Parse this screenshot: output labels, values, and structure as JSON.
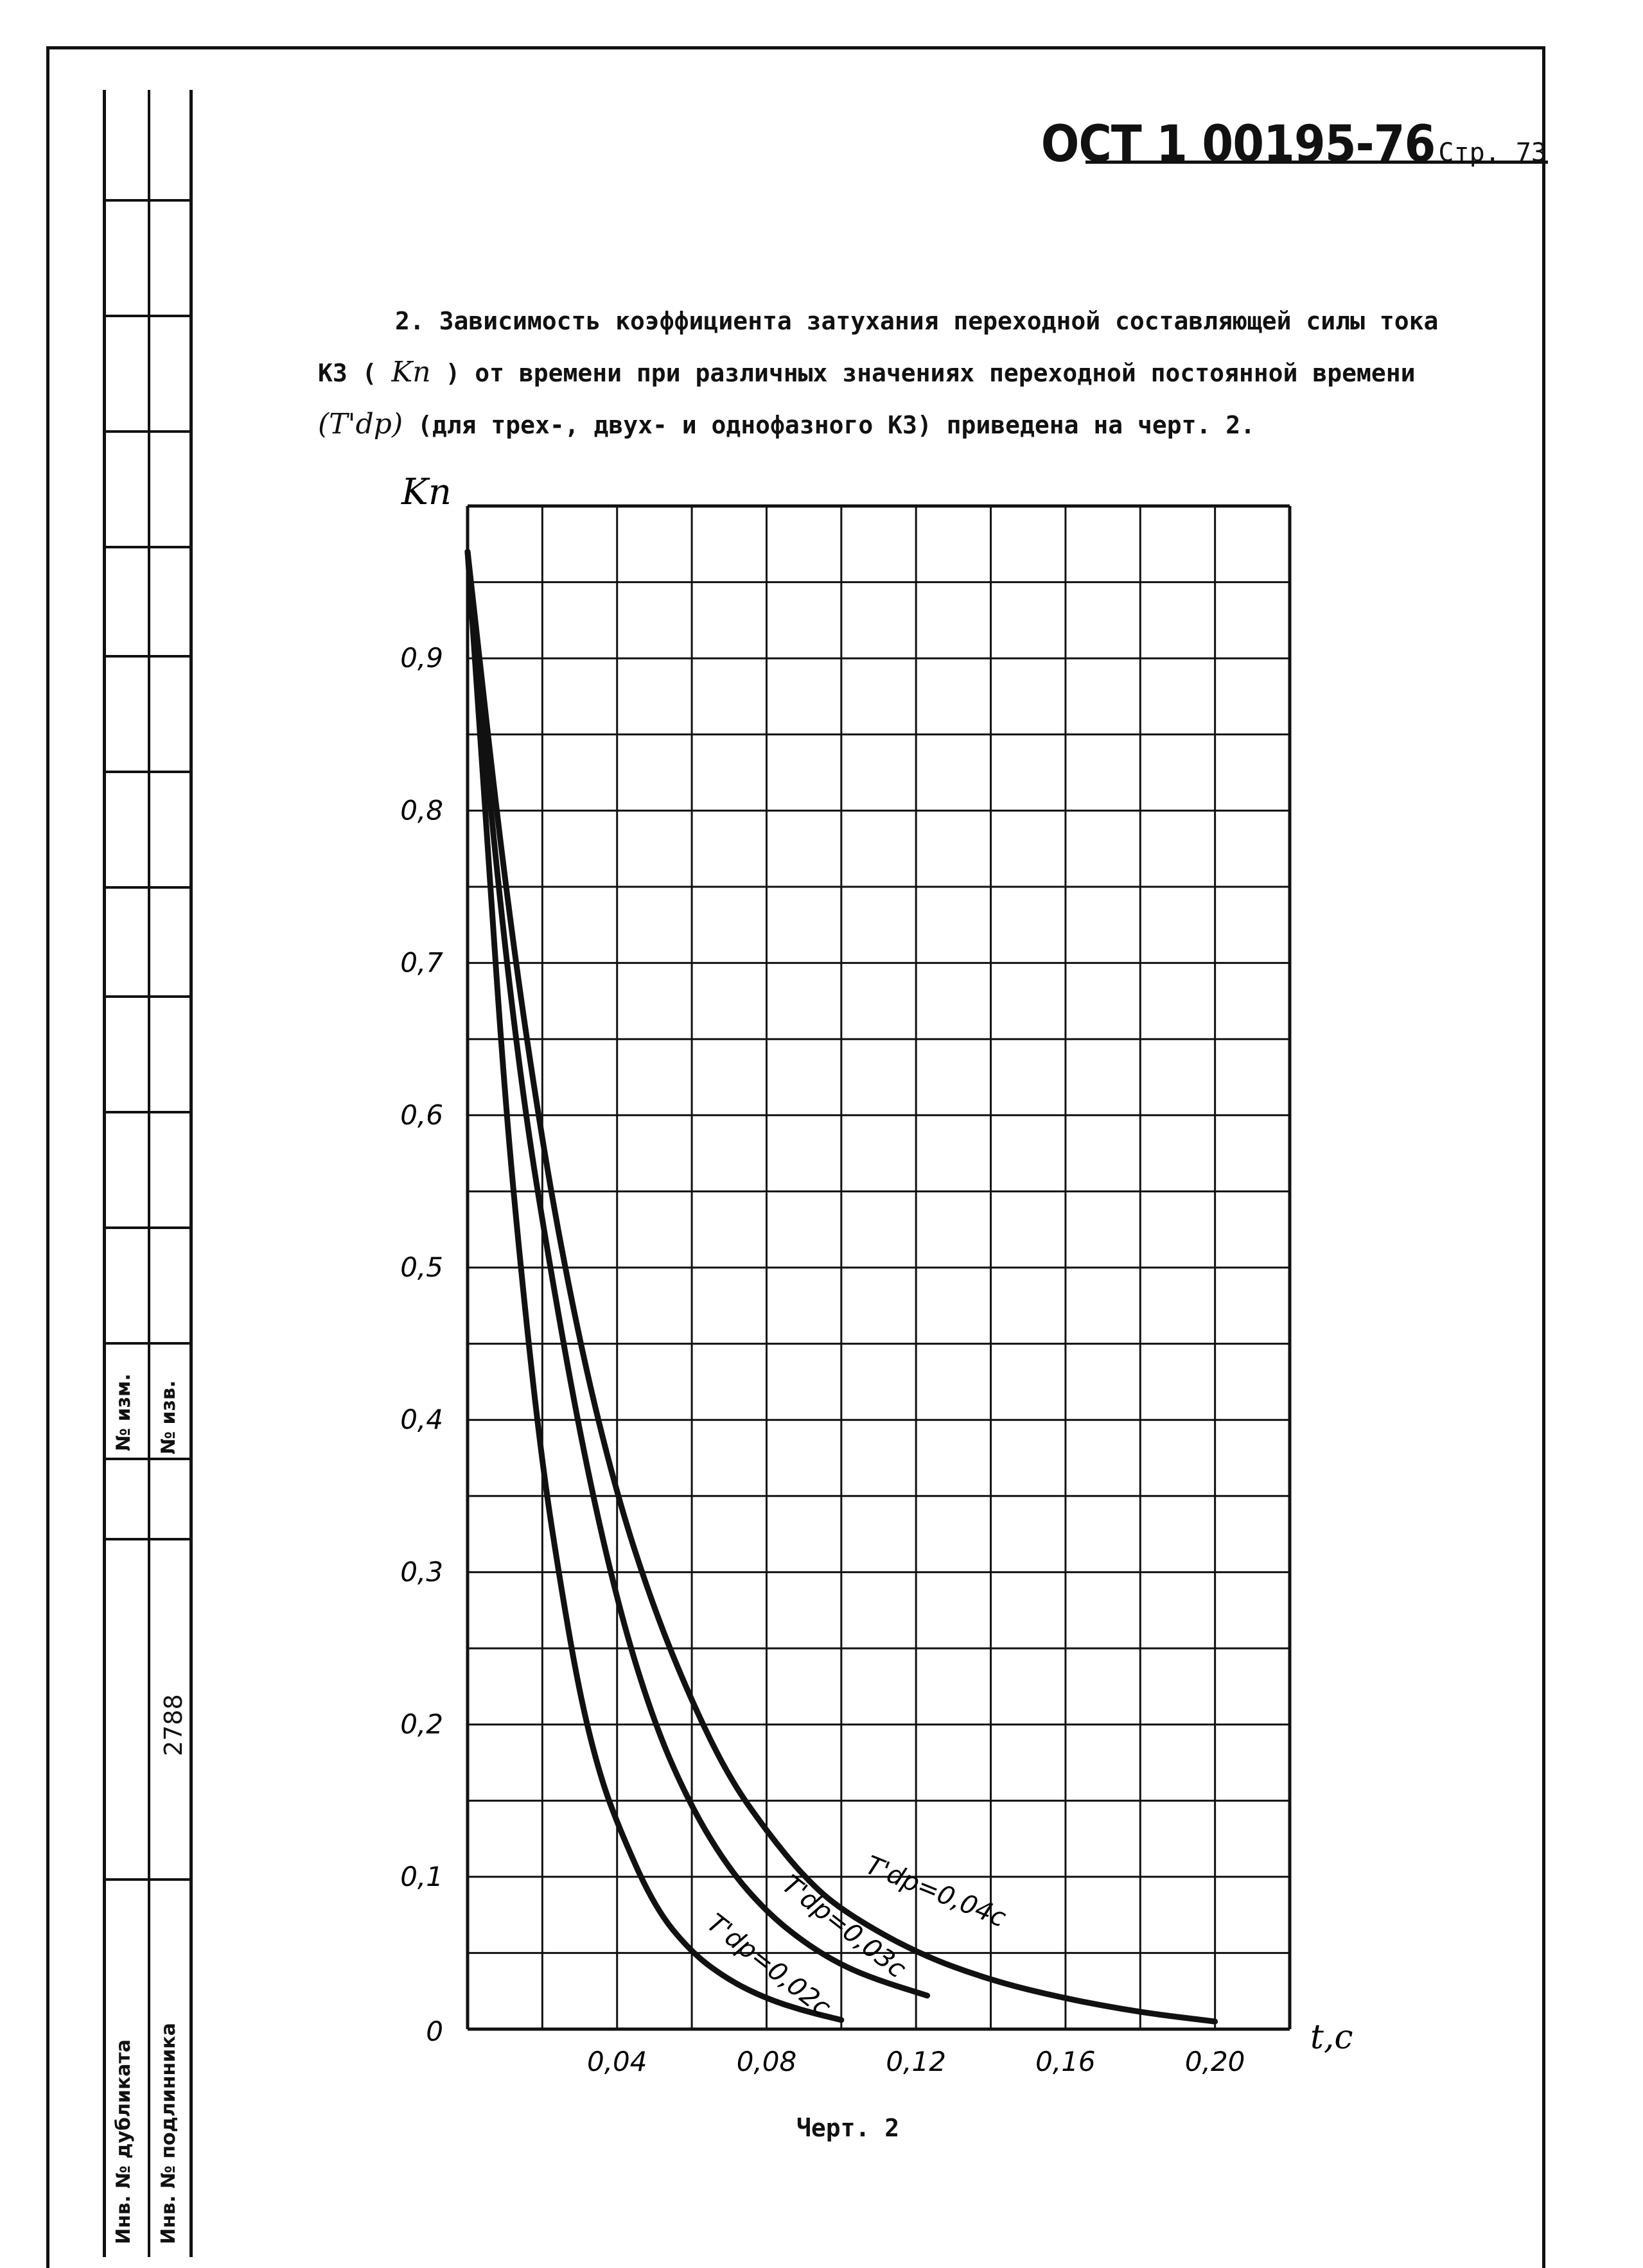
{
  "header": {
    "standard": "ОСТ 1 00195-76",
    "page": "Стр. 73"
  },
  "paragraph": {
    "line1": "2. Зависимость коэффициента затухания переходной составляющей силы тока",
    "line2_a": "КЗ (",
    "line2_sym": "Kп",
    "line2_b": ") от времени при различных значениях переходной постоянной времени",
    "line3_sym": "(T'dp)",
    "line3_b": " (для трех-, двух- и однофазного КЗ) приведена на черт. 2."
  },
  "side_table": {
    "izm": "№ изм.",
    "izv": "№ изв.",
    "dubl": "Инв. № дубликата",
    "podl": "Инв. № подлинника",
    "number": "2788"
  },
  "caption": "Черт. 2",
  "chart_data": {
    "type": "line",
    "ylabel": "Kп",
    "xlabel": "t,c",
    "xlim": [
      0,
      0.22
    ],
    "ylim": [
      0,
      1.0
    ],
    "grid": true,
    "y_ticks": [
      "0",
      "0,1",
      "0,2",
      "0,3",
      "0,4",
      "0,5",
      "0,6",
      "0,7",
      "0,8",
      "0,9"
    ],
    "x_ticks": [
      "0,04",
      "0,08",
      "0,12",
      "0,16",
      "0,20"
    ],
    "series": [
      {
        "name": "T'dp=0,02c",
        "x": [
          0,
          0.005,
          0.01,
          0.015,
          0.02,
          0.025,
          0.03,
          0.035,
          0.04,
          0.05,
          0.06,
          0.07,
          0.08,
          0.09,
          0.1
        ],
        "y": [
          0.97,
          0.79,
          0.61,
          0.48,
          0.37,
          0.29,
          0.22,
          0.17,
          0.135,
          0.08,
          0.05,
          0.032,
          0.02,
          0.012,
          0.006
        ]
      },
      {
        "name": "T'dp=0,03c",
        "x": [
          0,
          0.005,
          0.01,
          0.015,
          0.02,
          0.03,
          0.04,
          0.05,
          0.06,
          0.07,
          0.08,
          0.09,
          0.1,
          0.11,
          0.123
        ],
        "y": [
          0.97,
          0.83,
          0.71,
          0.61,
          0.53,
          0.39,
          0.28,
          0.2,
          0.145,
          0.105,
          0.077,
          0.057,
          0.042,
          0.032,
          0.022
        ]
      },
      {
        "name": "T'dp=0,04c",
        "x": [
          0,
          0.01,
          0.02,
          0.03,
          0.04,
          0.05,
          0.06,
          0.07,
          0.08,
          0.09,
          0.1,
          0.12,
          0.14,
          0.16,
          0.18,
          0.2
        ],
        "y": [
          0.97,
          0.75,
          0.58,
          0.45,
          0.35,
          0.275,
          0.215,
          0.165,
          0.13,
          0.1,
          0.078,
          0.05,
          0.032,
          0.02,
          0.011,
          0.005
        ]
      }
    ]
  }
}
